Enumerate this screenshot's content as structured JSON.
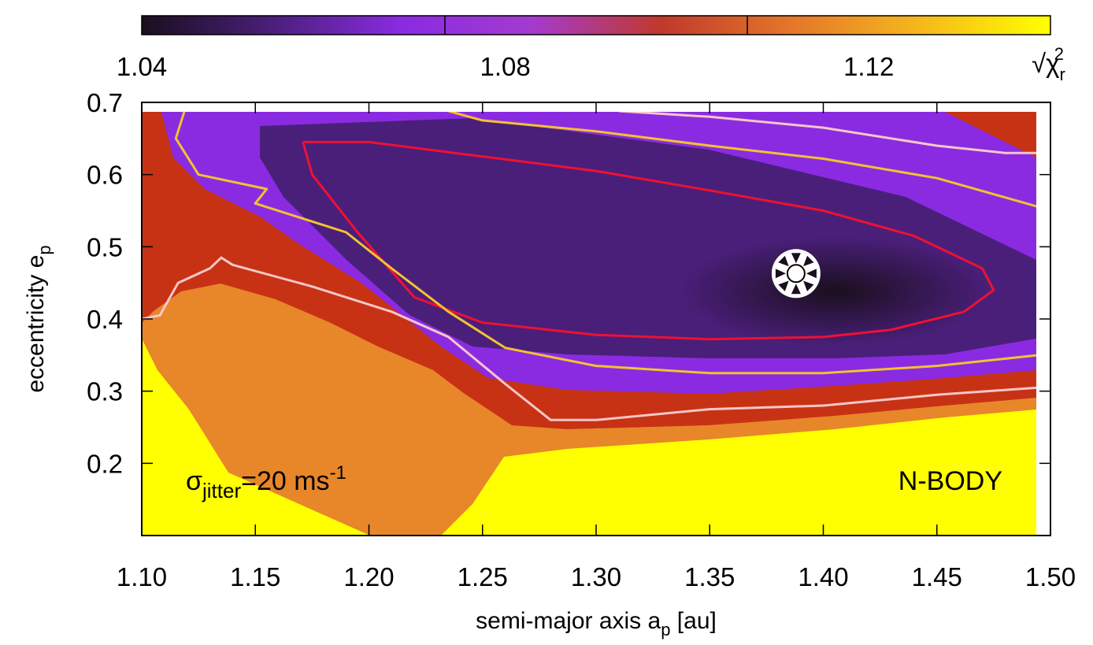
{
  "chart_data": {
    "type": "heatmap",
    "xlabel": "semi-major axis a",
    "xlabel_sub": "p",
    "xlabel_unit": " [au]",
    "ylabel": "eccentricity e",
    "ylabel_sub": "p",
    "xlim": [
      1.1,
      1.5
    ],
    "ylim": [
      0.1,
      0.7
    ],
    "x_ticks": [
      "1.10",
      "1.15",
      "1.20",
      "1.25",
      "1.30",
      "1.35",
      "1.40",
      "1.45",
      "1.50"
    ],
    "y_ticks": [
      "0.2",
      "0.3",
      "0.4",
      "0.5",
      "0.6",
      "0.7"
    ],
    "colorbar": {
      "range": [
        1.04,
        1.14
      ],
      "ticks": [
        "1.04",
        "1.08",
        "1.12"
      ],
      "label": "√χ",
      "label_sub": "r",
      "label_sup": "2",
      "colors": [
        "#1a0f1e",
        "#4a1f7a",
        "#8a2be2",
        "#a43ad0",
        "#c0392b",
        "#e4762a",
        "#f6b81c",
        "#ffff00"
      ]
    },
    "best_fit": {
      "x": 1.388,
      "y": 0.463
    },
    "annotation_left": {
      "sigma": "σ",
      "sub": "jitter",
      "text": "=20 ms",
      "sup": "-1"
    },
    "annotation_right": "N-BODY",
    "contours": [
      {
        "level": "inner",
        "color": "#ee1133",
        "points": [
          [
            1.171,
            0.645
          ],
          [
            1.2,
            0.645
          ],
          [
            1.25,
            0.625
          ],
          [
            1.3,
            0.605
          ],
          [
            1.35,
            0.578
          ],
          [
            1.4,
            0.55
          ],
          [
            1.44,
            0.515
          ],
          [
            1.47,
            0.47
          ],
          [
            1.475,
            0.44
          ],
          [
            1.462,
            0.41
          ],
          [
            1.43,
            0.385
          ],
          [
            1.4,
            0.375
          ],
          [
            1.35,
            0.372
          ],
          [
            1.3,
            0.378
          ],
          [
            1.25,
            0.395
          ],
          [
            1.22,
            0.43
          ],
          [
            1.195,
            0.52
          ],
          [
            1.175,
            0.6
          ],
          [
            1.171,
            0.645
          ]
        ]
      },
      {
        "level": "middle",
        "color": "#f2c230",
        "points": [
          [
            1.119,
            0.69
          ],
          [
            1.115,
            0.65
          ],
          [
            1.125,
            0.6
          ],
          [
            1.155,
            0.58
          ],
          [
            1.15,
            0.56
          ],
          [
            1.19,
            0.52
          ],
          [
            1.21,
            0.47
          ],
          [
            1.235,
            0.41
          ],
          [
            1.26,
            0.36
          ],
          [
            1.3,
            0.335
          ],
          [
            1.35,
            0.325
          ],
          [
            1.4,
            0.325
          ],
          [
            1.45,
            0.335
          ],
          [
            1.495,
            0.35
          ]
        ]
      },
      {
        "level": "middle-upper",
        "color": "#f2c230",
        "points": [
          [
            1.235,
            0.688
          ],
          [
            1.25,
            0.675
          ],
          [
            1.3,
            0.66
          ],
          [
            1.35,
            0.64
          ],
          [
            1.4,
            0.622
          ],
          [
            1.45,
            0.595
          ],
          [
            1.495,
            0.555
          ]
        ]
      },
      {
        "level": "outer",
        "color": "#f7c6c6",
        "points": [
          [
            1.1,
            0.4
          ],
          [
            1.108,
            0.405
          ],
          [
            1.116,
            0.45
          ],
          [
            1.13,
            0.47
          ],
          [
            1.135,
            0.485
          ],
          [
            1.14,
            0.475
          ],
          [
            1.175,
            0.445
          ],
          [
            1.21,
            0.41
          ],
          [
            1.235,
            0.375
          ],
          [
            1.26,
            0.31
          ],
          [
            1.28,
            0.26
          ],
          [
            1.3,
            0.26
          ],
          [
            1.35,
            0.275
          ],
          [
            1.4,
            0.28
          ],
          [
            1.45,
            0.295
          ],
          [
            1.495,
            0.305
          ]
        ]
      },
      {
        "level": "outer-upper",
        "color": "#f7c6c6",
        "points": [
          [
            1.31,
            0.688
          ],
          [
            1.35,
            0.68
          ],
          [
            1.4,
            0.665
          ],
          [
            1.45,
            0.64
          ],
          [
            1.48,
            0.63
          ],
          [
            1.495,
            0.63
          ]
        ]
      }
    ]
  }
}
